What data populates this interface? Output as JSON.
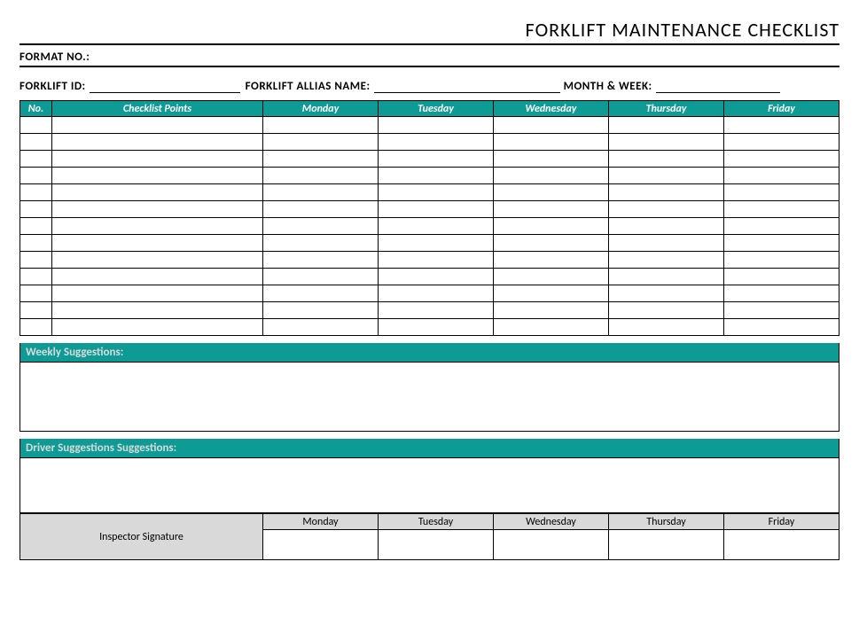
{
  "title": "FORKLIFT MAINTENANCE CHECKLIST",
  "format_label": "FORMAT NO.:",
  "fields": {
    "forklift_id": "FORKLIFT ID:",
    "alias_name": "FORKLIFT ALLIAS NAME:",
    "month_week": "MONTH & WEEK:"
  },
  "table": {
    "columns": {
      "no": "No.",
      "points": "Checklist Points",
      "mon": "Monday",
      "tue": "Tuesday",
      "wed": "Wednesday",
      "thu": "Thursday",
      "fri": "Friday"
    },
    "row_count": 13,
    "header_bg": "#0f9b95",
    "header_fg": "#ffffff"
  },
  "sections": {
    "weekly": "Weekly Suggestions:",
    "driver": "Driver Suggestions Suggestions:"
  },
  "signature": {
    "label": "Inspector Signature",
    "days": {
      "mon": "Monday",
      "tue": "Tuesday",
      "wed": "Wednesday",
      "thu": "Thursday",
      "fri": "Friday"
    },
    "label_bg": "#d9d9d9"
  },
  "colors": {
    "teal": "#0f9b95",
    "grey": "#d9d9d9",
    "white": "#ffffff",
    "black": "#000000"
  }
}
